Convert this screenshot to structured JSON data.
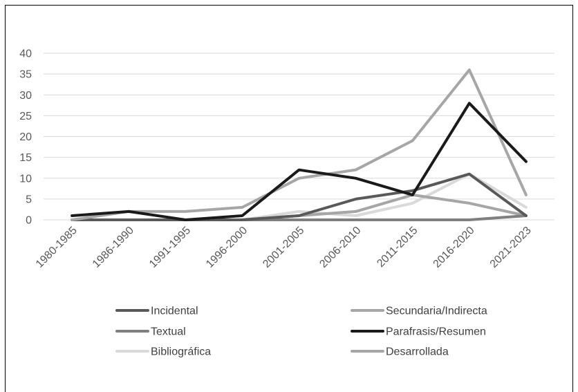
{
  "chart_data": {
    "type": "line",
    "title": "",
    "xlabel": "",
    "ylabel": "",
    "ylim": [
      0,
      40
    ],
    "yticks": [
      0,
      5,
      10,
      15,
      20,
      25,
      30,
      35,
      40
    ],
    "grid": "horizontal",
    "legend_placement": "bottom",
    "categories": [
      "1980-1985",
      "1986-1990",
      "1991-1995",
      "1996-2000",
      "2001-2005",
      "2006-2010",
      "2011-2015",
      "2016-2020",
      "2021-2023"
    ],
    "series": [
      {
        "name": "Incidental",
        "color": "#595959",
        "width": 4,
        "values": [
          0,
          0,
          0,
          0,
          1,
          5,
          7,
          11,
          1
        ]
      },
      {
        "name": "Secundaria/Indirecta",
        "color": "#a6a6a6",
        "width": 4,
        "values": [
          0,
          2,
          2,
          3,
          10,
          12,
          19,
          36,
          6
        ]
      },
      {
        "name": "Textual",
        "color": "#7f7f7f",
        "width": 4,
        "values": [
          0,
          0,
          0,
          0,
          0,
          0,
          0,
          0,
          1
        ]
      },
      {
        "name": "Parafrasis/Resumen",
        "color": "#1a1a1a",
        "width": 4,
        "values": [
          1,
          2,
          0,
          1,
          12,
          10,
          6,
          28,
          14
        ]
      },
      {
        "name": "Bibliográfica",
        "color": "#d9d9d9",
        "width": 4,
        "values": [
          0,
          0,
          0,
          0,
          2,
          1,
          4,
          11,
          3
        ]
      },
      {
        "name": "Desarrollada",
        "color": "#a6a6a6",
        "width": 4,
        "values": [
          0,
          0,
          0,
          0,
          1,
          2,
          6,
          4,
          1
        ]
      }
    ]
  }
}
